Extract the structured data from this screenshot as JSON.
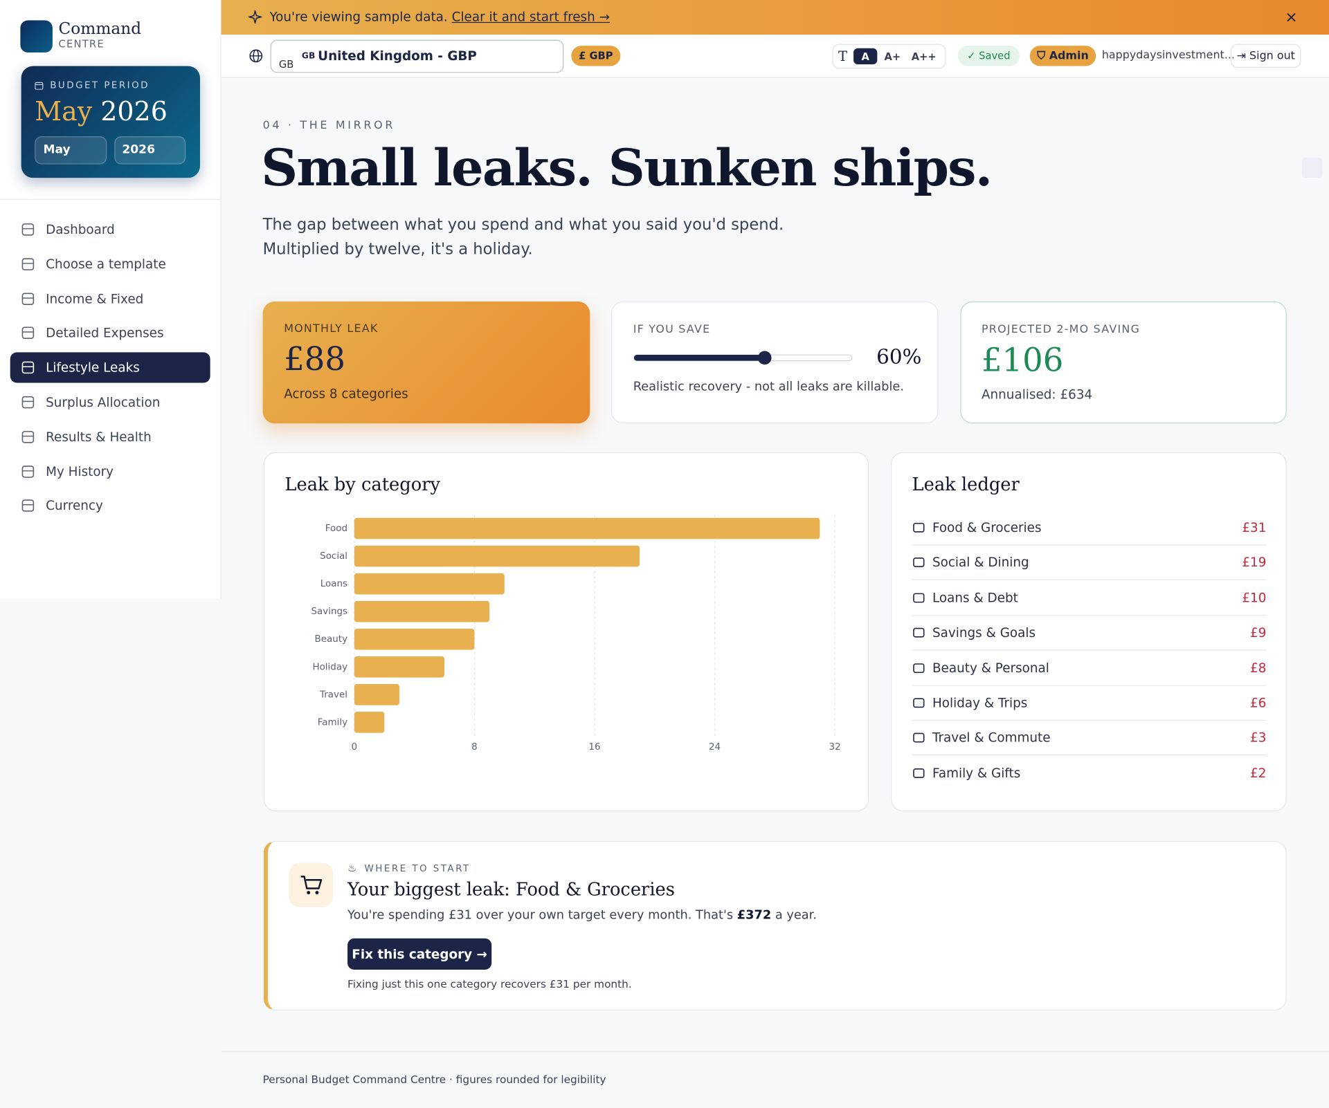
{
  "banner": {
    "text": "You're viewing sample data.",
    "link": "Clear it and start fresh →"
  },
  "brand": {
    "name": "Command",
    "sub": "CENTRE"
  },
  "period": {
    "label": "BUDGET PERIOD",
    "month": "May",
    "year": "2026",
    "month_select": "May",
    "year_select": "2026"
  },
  "nav": [
    {
      "label": "Dashboard"
    },
    {
      "label": "Choose a template"
    },
    {
      "label": "Income & Fixed"
    },
    {
      "label": "Detailed Expenses"
    },
    {
      "label": "Lifestyle Leaks",
      "active": true
    },
    {
      "label": "Surplus Allocation"
    },
    {
      "label": "Results & Health"
    },
    {
      "label": "My History"
    },
    {
      "label": "Currency"
    }
  ],
  "toolbar": {
    "flag": "GB",
    "country": "United Kingdom - GBP",
    "flag_fallback": "GB",
    "currency_badge": "£ GBP",
    "font_sizes": [
      "A",
      "A+",
      "A++"
    ],
    "saved": "Saved",
    "role": "Admin",
    "user": "happydaysinvestment...",
    "sign_out": "Sign out"
  },
  "header": {
    "eyebrow": "04 · THE MIRROR",
    "title": "Small leaks. Sunken ships.",
    "subtitle": "The gap between what you spend and what you said you'd spend. Multiplied by twelve, it's a holiday."
  },
  "kpis": {
    "monthly_leak": {
      "label": "MONTHLY LEAK",
      "value": "£88",
      "note": "Across 8 categories"
    },
    "if_you_save": {
      "label": "IF YOU SAVE",
      "value": 60,
      "value_label": "60%",
      "range": [
        0,
        100
      ],
      "note": "Realistic recovery - not all leaks are killable."
    },
    "projected": {
      "label": "PROJECTED 2-MO SAVING",
      "value": "£106",
      "note": "Annualised: £634"
    }
  },
  "chart_data": {
    "type": "bar",
    "orientation": "horizontal",
    "title": "Leak by category",
    "categories": [
      "Food",
      "Social",
      "Loans",
      "Savings",
      "Beauty",
      "Holiday",
      "Travel",
      "Family"
    ],
    "values": [
      31,
      19,
      10,
      9,
      8,
      6,
      3,
      2
    ],
    "color": "#e8b04f",
    "xlim": [
      0,
      32
    ],
    "xticks": [
      0,
      8,
      16,
      24,
      32
    ],
    "grid": true
  },
  "ledger": {
    "title": "Leak ledger",
    "rows": [
      {
        "name": "Food & Groceries",
        "amount": "£31"
      },
      {
        "name": "Social & Dining",
        "amount": "£19"
      },
      {
        "name": "Loans & Debt",
        "amount": "£10"
      },
      {
        "name": "Savings & Goals",
        "amount": "£9"
      },
      {
        "name": "Beauty & Personal",
        "amount": "£8"
      },
      {
        "name": "Holiday & Trips",
        "amount": "£6"
      },
      {
        "name": "Travel & Commute",
        "amount": "£3"
      },
      {
        "name": "Family & Gifts",
        "amount": "£2"
      }
    ]
  },
  "callout": {
    "eyebrow": "WHERE TO START",
    "title": "Your biggest leak: Food & Groceries",
    "text_before": "You're spending £31 over your own target every month. That's",
    "text_bold": "£372",
    "text_after": "a year.",
    "button": "Fix this category →",
    "footnote": "Fixing just this one category recovers £31 per month."
  },
  "footer": {
    "text": "Personal Budget Command Centre · figures rounded for legibility"
  }
}
